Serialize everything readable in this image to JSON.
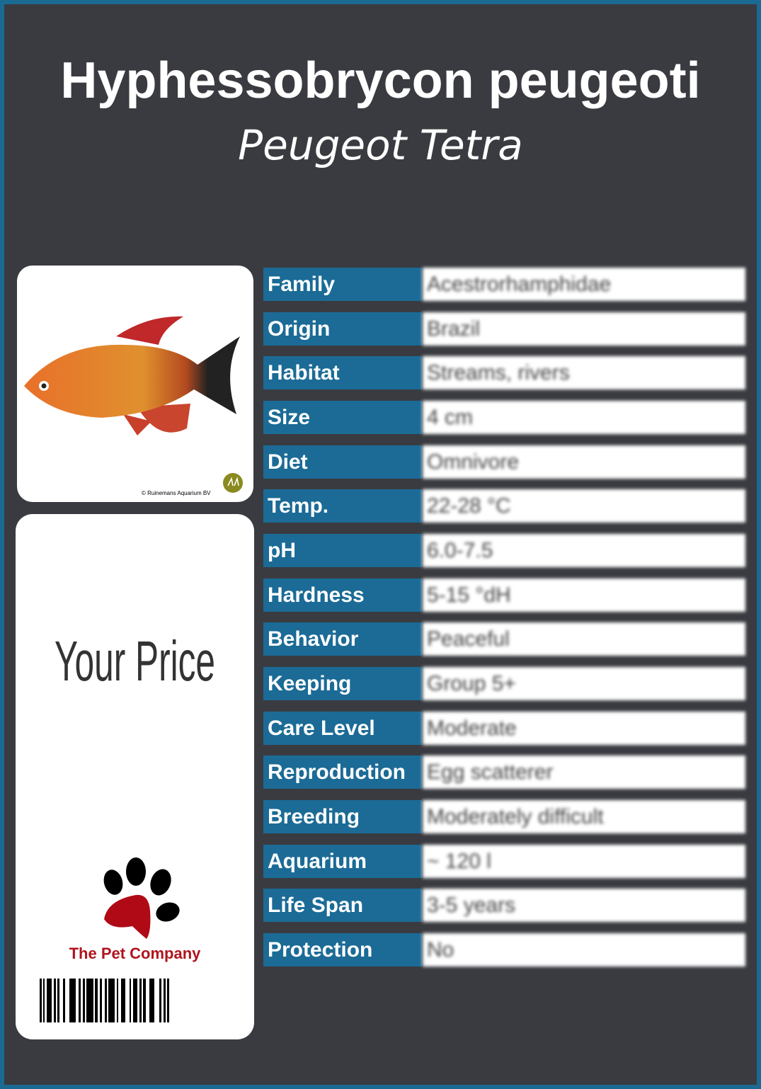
{
  "header": {
    "scientific_name": "Hyphessobrycon peugeoti",
    "common_name": "Peugeot Tetra"
  },
  "photo": {
    "credit": "© Ruinemans Aquarium BV",
    "logo": "RA"
  },
  "price": {
    "label": "Your  Price"
  },
  "brand": {
    "name": "The Pet Company",
    "icon": "paw-print-icon"
  },
  "colors": {
    "label_bg": "#1b6b96",
    "background": "#3a3b40",
    "frame": "#1a6a93",
    "brand": "#b0141e"
  },
  "facts": [
    {
      "label": "Family",
      "value": "Acestrorhamphidae"
    },
    {
      "label": "Origin",
      "value": "Brazil"
    },
    {
      "label": "Habitat",
      "value": "Streams, rivers"
    },
    {
      "label": "Size",
      "value": "4 cm"
    },
    {
      "label": "Diet",
      "value": "Omnivore"
    },
    {
      "label": "Temp.",
      "value": "22-28 °C"
    },
    {
      "label": "pH",
      "value": "6.0-7.5"
    },
    {
      "label": "Hardness",
      "value": "5-15 °dH"
    },
    {
      "label": "Behavior",
      "value": "Peaceful"
    },
    {
      "label": "Keeping",
      "value": "Group 5+"
    },
    {
      "label": "Care Level",
      "value": "Moderate"
    },
    {
      "label": "Reproduction",
      "value": "Egg scatterer"
    },
    {
      "label": "Breeding",
      "value": "Moderately difficult"
    },
    {
      "label": "Aquarium",
      "value": "~ 120 l"
    },
    {
      "label": "Life Span",
      "value": "3-5 years"
    },
    {
      "label": "Protection",
      "value": "No"
    }
  ]
}
